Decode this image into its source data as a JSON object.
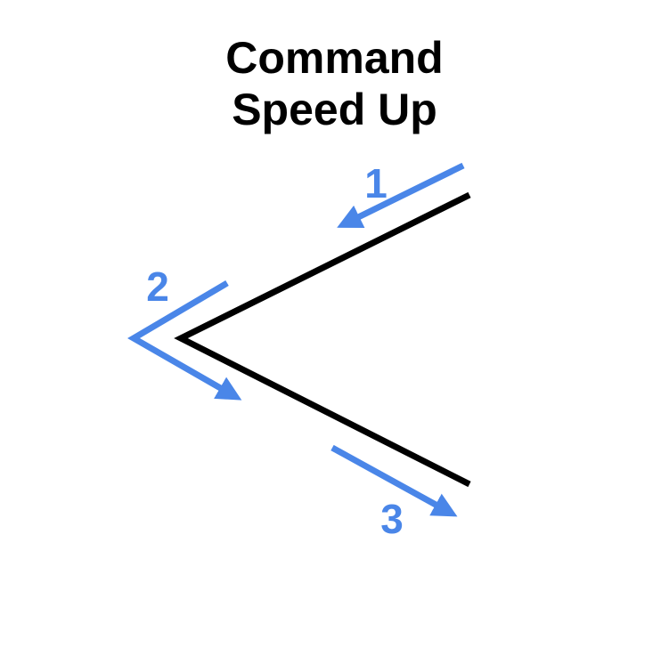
{
  "title": {
    "line1": "Command",
    "line2": "Speed Up"
  },
  "steps": [
    {
      "label": "1",
      "description": "Move inward along the upper stroke"
    },
    {
      "label": "2",
      "description": "Turn sharply at the point"
    },
    {
      "label": "3",
      "description": "Move outward along the lower stroke"
    }
  ],
  "colors": {
    "stroke": "#000000",
    "arrow": "#4a86e8",
    "background": "#ffffff"
  }
}
